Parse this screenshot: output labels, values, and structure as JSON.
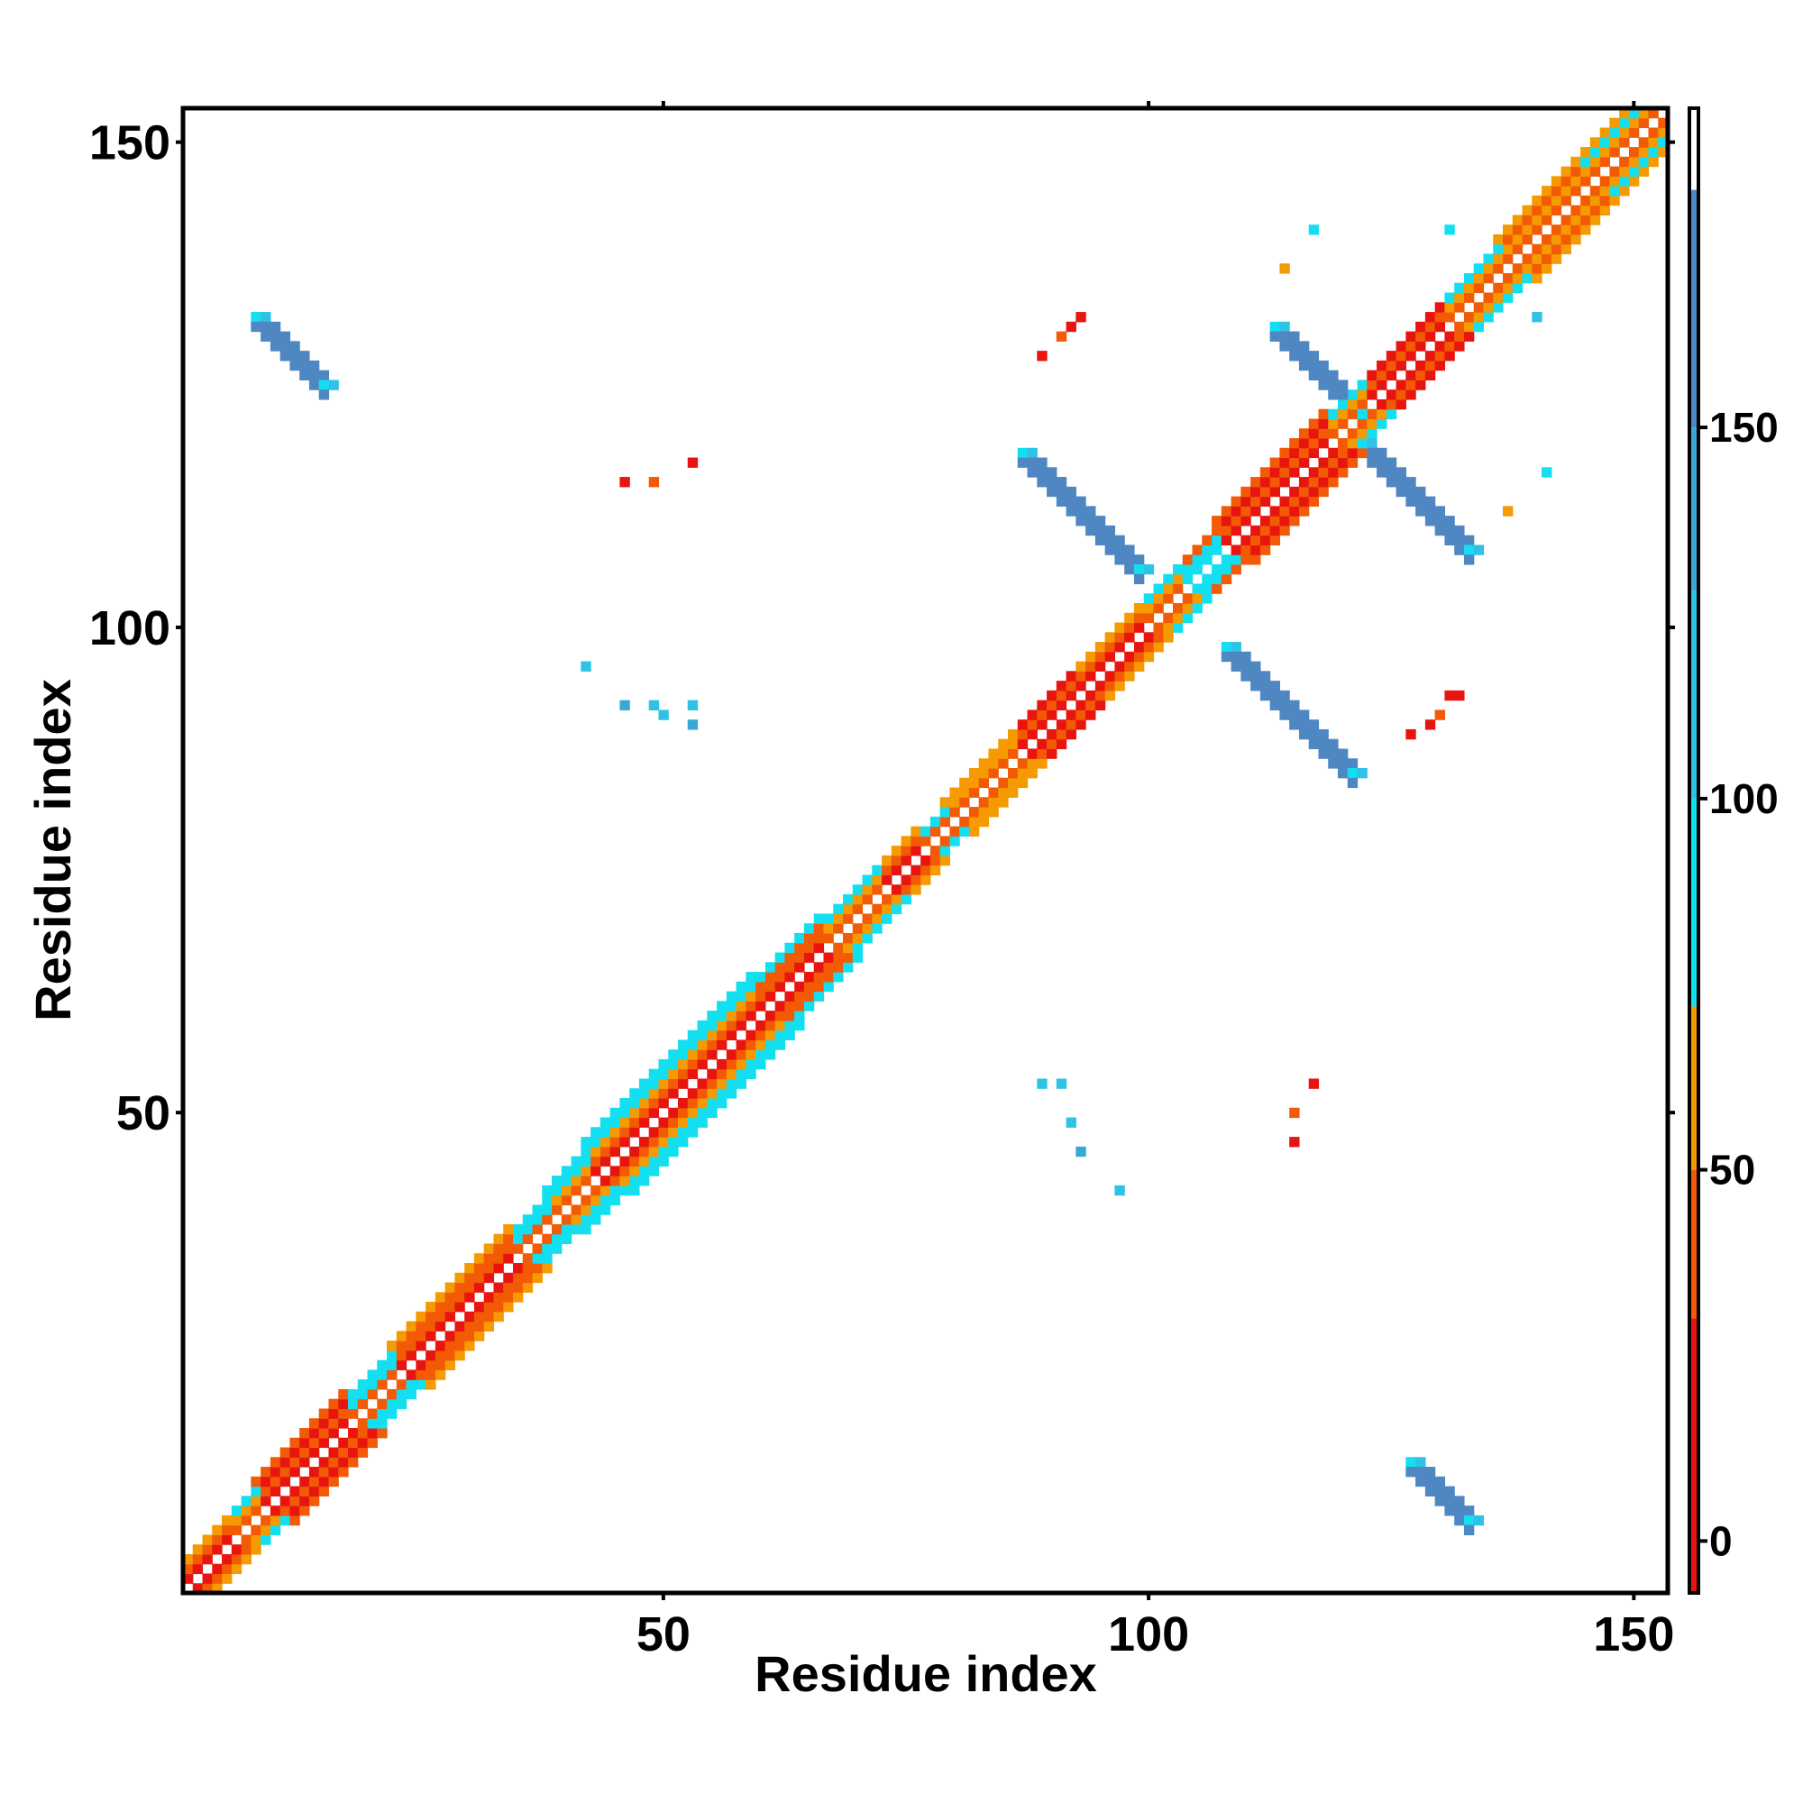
{
  "chart_data": {
    "type": "heatmap",
    "title": "",
    "xlabel": "Residue index",
    "ylabel": "Residue index",
    "xlim": [
      1,
      153
    ],
    "ylim": [
      1,
      153
    ],
    "x_ticks": [
      50,
      100,
      150
    ],
    "y_ticks": [
      50,
      100,
      150
    ],
    "grid": false,
    "colorbar": {
      "ticks": [
        0,
        50,
        100,
        150
      ],
      "range": [
        -7,
        193
      ],
      "segments": [
        {
          "from": -7,
          "to": 30,
          "color": "#e8140f"
        },
        {
          "from": 30,
          "to": 50,
          "color": "#f25a06"
        },
        {
          "from": 50,
          "to": 72,
          "color": "#f59a00"
        },
        {
          "from": 72,
          "to": 100,
          "color": "#13dff0"
        },
        {
          "from": 100,
          "to": 128,
          "color": "#2ec3e6"
        },
        {
          "from": 128,
          "to": 150,
          "color": "#39a9d4"
        },
        {
          "from": 150,
          "to": 182,
          "color": "#4f87c2"
        },
        {
          "from": 182,
          "to": 193,
          "color": "#ffffff"
        }
      ]
    },
    "value_legend_colors": {
      "10": "#e8140f",
      "40": "#f25a06",
      "60": "#f59a00",
      "85": "#13dff0",
      "115": "#2ec3e6",
      "140": "#39a9d4",
      "165": "#4f87c2"
    },
    "diagonal_bands": [
      {
        "from": 1,
        "to": 5,
        "values": [
          10,
          40,
          60
        ]
      },
      {
        "from": 5,
        "to": 8,
        "values": [
          40,
          60,
          85
        ]
      },
      {
        "from": 8,
        "to": 17,
        "values": [
          10,
          40,
          10,
          40
        ]
      },
      {
        "from": 17,
        "to": 22,
        "values": [
          40,
          85,
          85
        ]
      },
      {
        "from": 22,
        "to": 34,
        "values": [
          10,
          40,
          40,
          60
        ]
      },
      {
        "from": 34,
        "to": 38,
        "values": [
          40,
          85,
          85
        ]
      },
      {
        "from": 38,
        "to": 42,
        "values": [
          40,
          60,
          85,
          85
        ]
      },
      {
        "from": 42,
        "to": 59,
        "values": [
          10,
          40,
          60,
          85,
          85
        ]
      },
      {
        "from": 59,
        "to": 66,
        "values": [
          10,
          40,
          40,
          85
        ]
      },
      {
        "from": 66,
        "to": 72,
        "values": [
          40,
          60,
          85
        ]
      },
      {
        "from": 72,
        "to": 76,
        "values": [
          10,
          40,
          60
        ]
      },
      {
        "from": 76,
        "to": 79,
        "values": [
          40,
          85
        ]
      },
      {
        "from": 79,
        "to": 86,
        "values": [
          40,
          60,
          60
        ]
      },
      {
        "from": 86,
        "to": 92,
        "values": [
          10,
          40,
          10
        ]
      },
      {
        "from": 92,
        "to": 99,
        "values": [
          10,
          40,
          60
        ]
      },
      {
        "from": 99,
        "to": 103,
        "values": [
          40,
          60,
          85
        ]
      },
      {
        "from": 103,
        "to": 107,
        "values": [
          85,
          85,
          40
        ]
      },
      {
        "from": 107,
        "to": 118,
        "values": [
          10,
          40,
          10,
          40
        ]
      },
      {
        "from": 118,
        "to": 122,
        "values": [
          40,
          60,
          85
        ]
      },
      {
        "from": 122,
        "to": 130,
        "values": [
          10,
          40,
          10
        ]
      },
      {
        "from": 130,
        "to": 136,
        "values": [
          40,
          60,
          85
        ]
      },
      {
        "from": 136,
        "to": 144,
        "values": [
          40,
          60,
          40,
          60
        ]
      },
      {
        "from": 144,
        "to": 153,
        "values": [
          40,
          60,
          85,
          60
        ]
      }
    ],
    "antiparallel_sheets": [
      {
        "x": [
          108,
          121
        ],
        "y": [
          98,
          85
        ],
        "value": 165
      },
      {
        "x": [
          87,
          99
        ],
        "y": [
          118,
          106
        ],
        "value": 165
      },
      {
        "x": [
          113,
          122
        ],
        "y": [
          131,
          122
        ],
        "value": 165
      },
      {
        "x": [
          122,
          133
        ],
        "y": [
          119,
          109
        ],
        "value": 165
      },
      {
        "x": [
          8,
          15
        ],
        "y": [
          132,
          125
        ],
        "value": 165
      },
      {
        "x": [
          127,
          133
        ],
        "y": [
          14,
          8
        ],
        "value": 165
      }
    ],
    "isolated_contacts": [
      {
        "x": 46,
        "y": 115,
        "value": 10
      },
      {
        "x": 49,
        "y": 115,
        "value": 40
      },
      {
        "x": 53,
        "y": 117,
        "value": 10
      },
      {
        "x": 89,
        "y": 128,
        "value": 10
      },
      {
        "x": 91,
        "y": 130,
        "value": 40
      },
      {
        "x": 92,
        "y": 131,
        "value": 10
      },
      {
        "x": 93,
        "y": 132,
        "value": 10
      },
      {
        "x": 117,
        "y": 141,
        "value": 85
      },
      {
        "x": 114,
        "y": 137,
        "value": 60
      },
      {
        "x": 131,
        "y": 141,
        "value": 85
      },
      {
        "x": 141,
        "y": 116,
        "value": 85
      },
      {
        "x": 137,
        "y": 112,
        "value": 60
      },
      {
        "x": 140,
        "y": 132,
        "value": 115
      },
      {
        "x": 127,
        "y": 89,
        "value": 10
      },
      {
        "x": 129,
        "y": 90,
        "value": 10
      },
      {
        "x": 130,
        "y": 91,
        "value": 40
      },
      {
        "x": 131,
        "y": 93,
        "value": 10
      },
      {
        "x": 132,
        "y": 93,
        "value": 10
      },
      {
        "x": 42,
        "y": 96,
        "value": 115
      },
      {
        "x": 46,
        "y": 92,
        "value": 140
      },
      {
        "x": 49,
        "y": 92,
        "value": 115
      },
      {
        "x": 50,
        "y": 91,
        "value": 115
      },
      {
        "x": 53,
        "y": 92,
        "value": 115
      },
      {
        "x": 53,
        "y": 90,
        "value": 140
      },
      {
        "x": 89,
        "y": 53,
        "value": 115
      },
      {
        "x": 91,
        "y": 53,
        "value": 115
      },
      {
        "x": 92,
        "y": 49,
        "value": 115
      },
      {
        "x": 93,
        "y": 46,
        "value": 140
      },
      {
        "x": 97,
        "y": 42,
        "value": 115
      },
      {
        "x": 117,
        "y": 53,
        "value": 10
      },
      {
        "x": 115,
        "y": 50,
        "value": 40
      },
      {
        "x": 115,
        "y": 47,
        "value": 10
      }
    ]
  }
}
